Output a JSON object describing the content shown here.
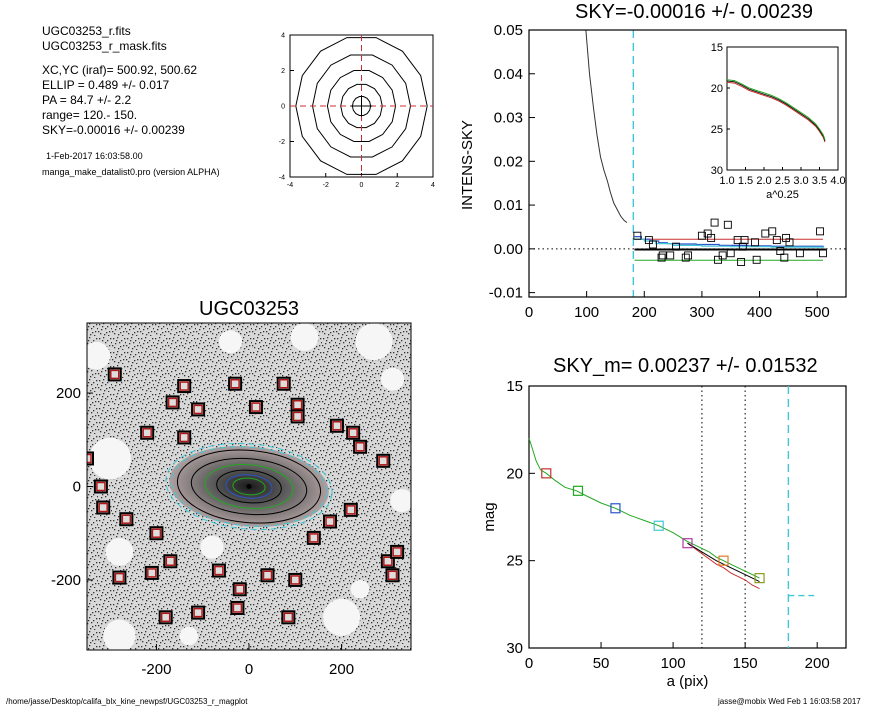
{
  "header": {
    "lines": [
      "UGC03253_r.fits",
      "UGC03253_r_mask.fits",
      "XC,YC (iraf)=   500.92, 500.62",
      "ELLIP = 0.489 +/- 0.017",
      "PA    =  84.7 +/-   2.2",
      "range=  120.-  150.",
      "SKY=-0.00016 +/- 0.00239"
    ],
    "date": "1-Feb-2017 16:03:58.00",
    "program": "manga_make_datalist0.pro (version ALPHA)"
  },
  "footer": {
    "path": "/home/jasse/Desktop/califa_blx_kine_newpsf/UGC03253_r_magplot",
    "user_time": "jasse@mobix  Wed Feb  1 16:03:58 2017"
  },
  "colors": {
    "cyan": "#3fc7d6",
    "red": "#c83030",
    "green": "#22a822",
    "blue": "#2b55c9",
    "magenta": "#b13aa8",
    "orange": "#e37a2a",
    "olive": "#8a9a1e",
    "mask_red": "#b01818",
    "grey": "#9a9a9a"
  },
  "chart_data": [
    {
      "id": "contour",
      "type": "contour",
      "title": "",
      "xlim": [
        -4,
        4
      ],
      "ylim": [
        -4,
        4
      ],
      "xticks": [
        "-4",
        "-2",
        "0",
        "2",
        "4"
      ],
      "yticks": [
        "-4",
        "-2",
        "0",
        "2",
        "4"
      ],
      "levels_radius": [
        0.55,
        1.25,
        2.05,
        2.95,
        3.95
      ],
      "crosshair": {
        "x": 0,
        "y": 0
      }
    },
    {
      "id": "sky",
      "type": "line",
      "title": "SKY=-0.00016 +/- 0.00239",
      "ylabel": "INTENS-SKY",
      "xlim": [
        0,
        550
      ],
      "ylim": [
        -0.011,
        0.05
      ],
      "xticks": [
        "0",
        "100",
        "200",
        "300",
        "400",
        "500"
      ],
      "yticks": [
        "0.05",
        "0.04",
        "0.03",
        "0.02",
        "0.01",
        "0.00",
        "-0.01"
      ],
      "profile": [
        [
          98,
          0.051
        ],
        [
          105,
          0.04
        ],
        [
          112,
          0.032
        ],
        [
          118,
          0.026
        ],
        [
          124,
          0.021
        ],
        [
          130,
          0.018
        ],
        [
          136,
          0.0155
        ],
        [
          141,
          0.013
        ],
        [
          147,
          0.0105
        ],
        [
          153,
          0.009
        ],
        [
          159,
          0.0075
        ],
        [
          165,
          0.0065
        ],
        [
          170,
          0.006
        ]
      ],
      "cut_x": 181,
      "sky_level": -0.00016,
      "upper_level": 0.0022,
      "lower_level": -0.0026,
      "blue_steps": [
        [
          183,
          0.0028
        ],
        [
          195,
          0.0022
        ],
        [
          210,
          0.0018
        ],
        [
          225,
          0.0014
        ],
        [
          240,
          0.0012
        ],
        [
          260,
          0.0011
        ],
        [
          290,
          0.001
        ],
        [
          330,
          0.0008
        ],
        [
          380,
          0.0007
        ],
        [
          420,
          0.0006
        ],
        [
          460,
          0.0006
        ],
        [
          510,
          0.0005
        ]
      ],
      "cyan_steps": [
        [
          183,
          0.0022
        ],
        [
          200,
          0.0018
        ],
        [
          220,
          0.0012
        ],
        [
          250,
          0.0008
        ],
        [
          300,
          0.0006
        ],
        [
          350,
          0.0005
        ],
        [
          420,
          0.0004
        ],
        [
          510,
          0.0004
        ]
      ],
      "points": [
        [
          188,
          0.003
        ],
        [
          208,
          0.002
        ],
        [
          215,
          0.001
        ],
        [
          230,
          -0.002
        ],
        [
          232,
          -0.0015
        ],
        [
          245,
          -0.0015
        ],
        [
          255,
          0.0005
        ],
        [
          272,
          -0.002
        ],
        [
          276,
          -0.0015
        ],
        [
          300,
          0.003
        ],
        [
          310,
          0.0035
        ],
        [
          316,
          0.0025
        ],
        [
          322,
          0.006
        ],
        [
          328,
          -0.0025
        ],
        [
          336,
          -0.0015
        ],
        [
          345,
          0.0055
        ],
        [
          350,
          -0.001
        ],
        [
          362,
          0.002
        ],
        [
          368,
          -0.003
        ],
        [
          371,
          0.0005
        ],
        [
          374,
          0.002
        ],
        [
          392,
          0.0015
        ],
        [
          395,
          -0.0025
        ],
        [
          410,
          0.0035
        ],
        [
          422,
          0.004
        ],
        [
          430,
          0.002
        ],
        [
          436,
          -0.0005
        ],
        [
          443,
          -0.002
        ],
        [
          446,
          0.0025
        ],
        [
          452,
          0.0015
        ],
        [
          470,
          -0.001
        ],
        [
          505,
          0.004
        ],
        [
          510,
          -0.001
        ]
      ],
      "inset": {
        "xlabel": "a^0.25",
        "xlim": [
          1.0,
          4.0
        ],
        "ylim": [
          15,
          30
        ],
        "xticks": [
          "1.0",
          "1.5",
          "2.0",
          "2.5",
          "3.0",
          "3.5",
          "4.0"
        ],
        "yticks": [
          "15",
          "20",
          "25",
          "30"
        ],
        "profile": [
          [
            1.0,
            19.0
          ],
          [
            1.2,
            19.1
          ],
          [
            1.4,
            19.5
          ],
          [
            1.6,
            20.0
          ],
          [
            1.8,
            20.3
          ],
          [
            2.0,
            20.6
          ],
          [
            2.2,
            20.9
          ],
          [
            2.4,
            21.3
          ],
          [
            2.6,
            21.8
          ],
          [
            2.8,
            22.4
          ],
          [
            3.0,
            23.0
          ],
          [
            3.2,
            23.6
          ],
          [
            3.4,
            24.4
          ],
          [
            3.5,
            25.0
          ],
          [
            3.6,
            25.7
          ],
          [
            3.65,
            26.3
          ]
        ]
      }
    },
    {
      "id": "image",
      "type": "image",
      "title": "UGC03253",
      "xlim": [
        -350,
        350
      ],
      "ylim": [
        -350,
        350
      ],
      "xticks": [
        "-200",
        "0",
        "200"
      ],
      "yticks": [
        "200",
        "0",
        "-200"
      ],
      "mask_boxes": [
        [
          -290,
          240
        ],
        [
          -140,
          215
        ],
        [
          -30,
          220
        ],
        [
          75,
          220
        ],
        [
          -165,
          180
        ],
        [
          -110,
          165
        ],
        [
          15,
          170
        ],
        [
          105,
          175
        ],
        [
          105,
          150
        ],
        [
          190,
          130
        ],
        [
          -220,
          115
        ],
        [
          225,
          115
        ],
        [
          240,
          85
        ],
        [
          -140,
          105
        ],
        [
          -350,
          60
        ],
        [
          -320,
          0
        ],
        [
          -315,
          -45
        ],
        [
          -265,
          -70
        ],
        [
          -200,
          -100
        ],
        [
          220,
          -50
        ],
        [
          290,
          55
        ],
        [
          175,
          -75
        ],
        [
          140,
          -110
        ],
        [
          -170,
          -160
        ],
        [
          -280,
          -195
        ],
        [
          -210,
          -185
        ],
        [
          -65,
          -180
        ],
        [
          40,
          -190
        ],
        [
          100,
          -200
        ],
        [
          -20,
          -220
        ],
        [
          -110,
          -270
        ],
        [
          -25,
          -260
        ],
        [
          -180,
          -280
        ],
        [
          85,
          -280
        ],
        [
          300,
          -160
        ],
        [
          320,
          -140
        ],
        [
          310,
          -190
        ]
      ],
      "ellipses": [
        [
          70,
          35,
          "#000000"
        ],
        [
          125,
          60,
          "#000000"
        ],
        [
          155,
          78,
          "#000000"
        ],
        [
          168,
          85,
          "#3fc7d6"
        ],
        [
          180,
          92,
          "#3fc7d6"
        ],
        [
          35,
          18,
          "#22a822"
        ],
        [
          50,
          25,
          "#2b55c9"
        ],
        [
          95,
          47,
          "#22a822"
        ]
      ]
    },
    {
      "id": "mag",
      "type": "line",
      "title": "SKY_m=  0.00237 +/- 0.01532",
      "xlabel": "a (pix)",
      "ylabel": "mag",
      "xlim": [
        0,
        220
      ],
      "ylim": [
        15,
        30
      ],
      "xticks": [
        "0",
        "50",
        "100",
        "150",
        "200"
      ],
      "yticks": [
        "15",
        "20",
        "25",
        "30"
      ],
      "vlines": [
        120,
        150
      ],
      "cut_x": 180,
      "sky_mag": 27.0,
      "series": [
        {
          "name": "",
          "color": "#22a822",
          "values": [
            [
              0,
              18.0
            ],
            [
              2,
              18.5
            ],
            [
              5,
              19.3
            ],
            [
              8,
              19.8
            ],
            [
              12,
              20.0
            ],
            [
              18,
              20.4
            ],
            [
              25,
              20.8
            ],
            [
              33,
              21.0
            ],
            [
              40,
              21.3
            ],
            [
              50,
              21.7
            ],
            [
              60,
              22.0
            ],
            [
              70,
              22.4
            ],
            [
              80,
              22.7
            ],
            [
              90,
              23.0
            ],
            [
              100,
              23.4
            ],
            [
              110,
              23.9
            ],
            [
              115,
              24.1
            ],
            [
              120,
              24.3
            ],
            [
              125,
              24.5
            ],
            [
              130,
              24.8
            ],
            [
              135,
              25.0
            ],
            [
              140,
              25.2
            ],
            [
              145,
              25.4
            ],
            [
              150,
              25.6
            ],
            [
              155,
              25.8
            ],
            [
              160,
              26.0
            ]
          ]
        },
        {
          "name": "",
          "color": "#c83030",
          "values": [
            [
              110,
              24.0
            ],
            [
              115,
              24.3
            ],
            [
              120,
              24.6
            ],
            [
              125,
              24.9
            ],
            [
              130,
              25.2
            ],
            [
              135,
              25.4
            ],
            [
              140,
              25.7
            ],
            [
              145,
              25.9
            ],
            [
              150,
              26.1
            ],
            [
              155,
              26.4
            ],
            [
              160,
              26.6
            ]
          ]
        },
        {
          "name": "",
          "color": "#000000",
          "values": [
            [
              110,
              24.0
            ],
            [
              120,
              24.5
            ],
            [
              130,
              25.0
            ],
            [
              140,
              25.4
            ],
            [
              150,
              25.8
            ],
            [
              160,
              26.2
            ]
          ]
        }
      ],
      "markers": [
        [
          12,
          20.0,
          "#c83030"
        ],
        [
          34,
          21.0,
          "#22a822"
        ],
        [
          60,
          22.0,
          "#2b55c9"
        ],
        [
          90,
          23.0,
          "#3fc7d6"
        ],
        [
          110,
          24.0,
          "#b13aa8"
        ],
        [
          135,
          25.0,
          "#e37a2a"
        ],
        [
          160,
          26.0,
          "#8a9a1e"
        ]
      ]
    }
  ]
}
